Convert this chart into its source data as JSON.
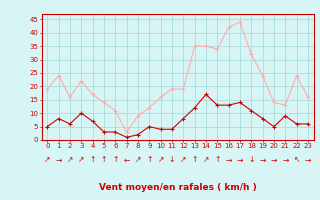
{
  "hours": [
    0,
    1,
    2,
    3,
    4,
    5,
    6,
    7,
    8,
    9,
    10,
    11,
    12,
    13,
    14,
    15,
    16,
    17,
    18,
    19,
    20,
    21,
    22,
    23
  ],
  "wind_avg": [
    5,
    8,
    6,
    10,
    7,
    3,
    3,
    1,
    2,
    5,
    4,
    4,
    8,
    12,
    17,
    13,
    13,
    14,
    11,
    8,
    5,
    9,
    6,
    6
  ],
  "wind_gust": [
    19,
    24,
    16,
    22,
    17,
    14,
    11,
    3,
    9,
    12,
    16,
    19,
    19,
    35,
    35,
    34,
    42,
    44,
    32,
    24,
    14,
    13,
    24,
    16
  ],
  "wind_dir_arrows": [
    "↗",
    "→",
    "↗",
    "↗",
    "↑",
    "↑",
    "↑",
    "←",
    "↗",
    "↑",
    "↗",
    "↓",
    "↗",
    "↑",
    "↗",
    "↑",
    "→",
    "→",
    "↓",
    "→",
    "→",
    "→",
    "↖",
    "→"
  ],
  "avg_color": "#cc0000",
  "gust_color": "#ffaaaa",
  "bg_color": "#d8f5f5",
  "grid_color": "#aadddd",
  "xlabel": "Vent moyen/en rafales ( km/h )",
  "xlabel_color": "#cc0000",
  "ylabel_ticks": [
    0,
    5,
    10,
    15,
    20,
    25,
    30,
    35,
    40,
    45
  ],
  "ylim": [
    0,
    47
  ],
  "tick_color": "#cc0000",
  "spine_color": "#cc0000"
}
